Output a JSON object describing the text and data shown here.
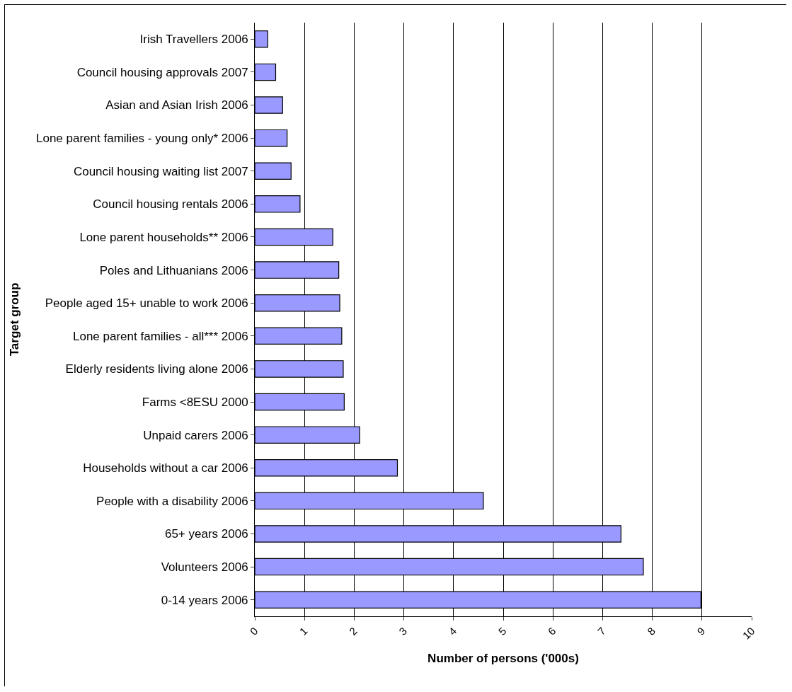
{
  "chart_data": {
    "type": "bar",
    "orientation": "horizontal",
    "xlabel": "Number of persons ('000s)",
    "ylabel": "Target group",
    "categories": [
      "Irish Travellers 2006",
      "Council housing approvals 2007",
      "Asian and Asian Irish 2006",
      "Lone parent families - young only* 2006",
      "Council housing waiting list 2007",
      "Council housing rentals 2006",
      "Lone parent households** 2006",
      "Poles and Lithuanians 2006",
      "People aged 15+ unable to work 2006",
      "Lone parent families - all*** 2006",
      "Elderly residents living alone 2006",
      "Farms <8ESU 2000",
      "Unpaid carers 2006",
      "Households without a car 2006",
      "People with a disability 2006",
      "65+ years 2006",
      "Volunteers 2006",
      "0-14 years 2006"
    ],
    "values": [
      0.26,
      0.42,
      0.56,
      0.65,
      0.73,
      0.91,
      1.57,
      1.69,
      1.71,
      1.75,
      1.78,
      1.8,
      2.11,
      2.87,
      4.6,
      7.37,
      7.82,
      8.98
    ],
    "color": "#9999ff",
    "xlim": [
      0,
      10
    ],
    "xticks": [
      0,
      1,
      2,
      3,
      4,
      5,
      6,
      7,
      8,
      9,
      10
    ],
    "grid": "x"
  }
}
